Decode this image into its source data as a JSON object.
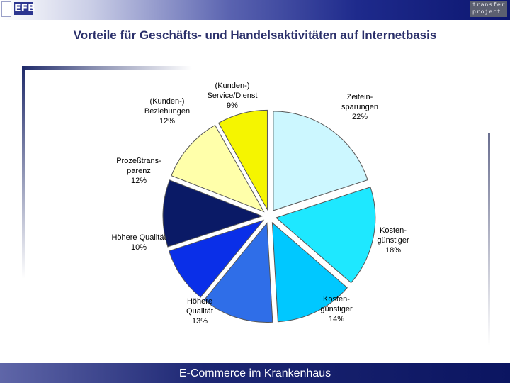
{
  "header": {
    "logo_left": "EFB",
    "logo_right_line1": "transfer",
    "logo_right_line2": "project"
  },
  "slide": {
    "title": "Vorteile für Geschäfts- und Handelsaktivitäten auf Internetbasis",
    "footer": "E-Commerce im Krankenhaus"
  },
  "chart_data": {
    "type": "pie",
    "title": "Vorteile für Geschäfts- und Handelsaktivitäten auf Internetbasis",
    "legend": "none (labels placed next to slices)",
    "slices": [
      {
        "lines": [
          "Zeitein-",
          "sparungen",
          "22%"
        ],
        "value": 22,
        "color": "#ccf7ff"
      },
      {
        "lines": [
          "Kosten-",
          "günstiger",
          "18%"
        ],
        "value": 18,
        "color": "#1ee8ff"
      },
      {
        "lines": [
          "Kosten-",
          "günstiger",
          "14%"
        ],
        "value": 14,
        "color": "#00c8ff"
      },
      {
        "lines": [
          "Höhere",
          "Qualität",
          "13%"
        ],
        "value": 13,
        "color": "#2f6ee8"
      },
      {
        "lines": [
          "Höhere Qualität",
          "10%"
        ],
        "value": 10,
        "color": "#0a2fe8"
      },
      {
        "lines": [
          "Prozeßtrans-",
          "parenz",
          "12%"
        ],
        "value": 12,
        "color": "#0a1a66"
      },
      {
        "lines": [
          "(Kunden-)",
          "Beziehungen",
          "12%"
        ],
        "value": 12,
        "color": "#ffffaa"
      },
      {
        "lines": [
          "(Kunden-)",
          "Service/Dienst",
          "9%"
        ],
        "value": 9,
        "color": "#f5f500"
      }
    ]
  }
}
